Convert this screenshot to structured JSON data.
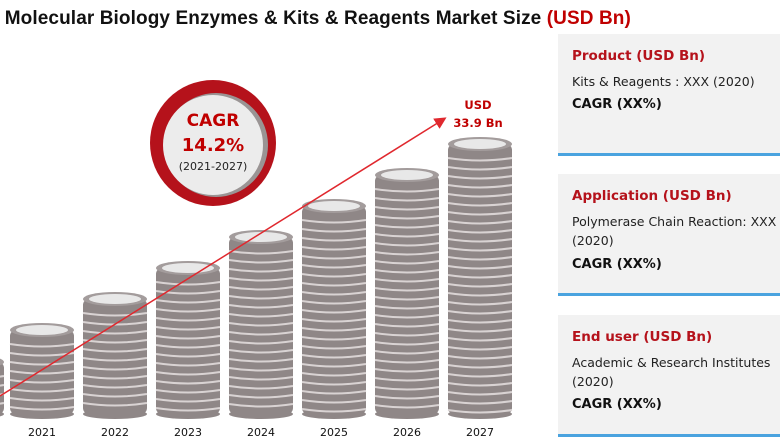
{
  "title": {
    "main": "l Molecular Biology Enzymes & Kits & Reagents Market Size ",
    "unit": "(USD Bn)"
  },
  "cagr_badge": {
    "label": "CAGR",
    "value": "14.2%",
    "period": "(2021-2027)"
  },
  "colors": {
    "accent": "#c00000",
    "coin": "#8f8787",
    "card_bg": "#f2f2f2",
    "card_border": "#4aa3df"
  },
  "chart_data": {
    "type": "bar",
    "style": "coin stacks",
    "categories": [
      "2021",
      "2022",
      "2023",
      "2024",
      "2025",
      "2026",
      "2027"
    ],
    "values": [
      null,
      null,
      null,
      null,
      null,
      null,
      33.9
    ],
    "end_label": {
      "line1": "USD",
      "line2": "33.9 Bn"
    },
    "trend_arrow": true
  },
  "cards": [
    {
      "heading": "Product (USD Bn)",
      "text_a": "Kits & Reagents : XXX (2020)",
      "text_b": "",
      "cagr": "CAGR (XX%)"
    },
    {
      "heading": "Application (USD Bn)",
      "text_a": "Polymerase Chain Reaction: XXX",
      "text_b": "(2020)",
      "cagr": "CAGR (XX%)"
    },
    {
      "heading": "End user (USD Bn)",
      "text_a": "Academic & Research Institutes",
      "text_b": "(2020)",
      "cagr": "CAGR (XX%)"
    }
  ]
}
